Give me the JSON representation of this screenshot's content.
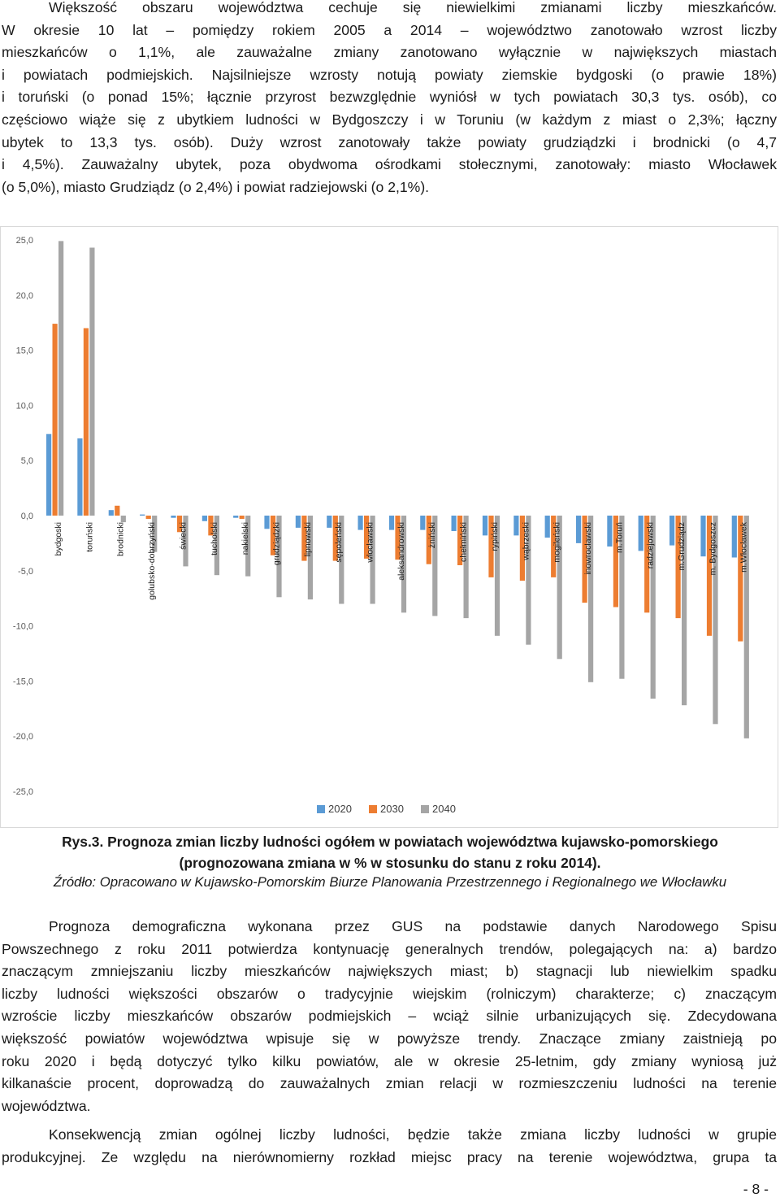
{
  "paragraph1": [
    "Większość obszaru województwa cechuje się niewielkimi zmianami liczby mieszkańców.",
    "W okresie 10 lat – pomiędzy rokiem 2005 a 2014 – województwo zanotowało wzrost liczby",
    "mieszkańców o 1,1%, ale zauważalne zmiany zanotowano wyłącznie w największych miastach",
    "i powiatach podmiejskich. Najsilniejsze wzrosty notują powiaty ziemskie bydgoski (o prawie 18%)",
    "i toruński (o ponad 15%; łącznie przyrost bezwzględnie wyniósł w tych powiatach 30,3 tys. osób), co",
    "częściowo wiąże się z ubytkiem ludności w Bydgoszczy i w Toruniu (w każdym z miast o 2,3%; łączny",
    "ubytek to 13,3 tys. osób). Duży wzrost zanotowały także powiaty grudziądzki i brodnicki (o 4,7",
    "i 4,5%). Zauważalny ubytek, poza obydwoma ośrodkami stołecznymi, zanotowały: miasto Włocławek",
    "(o 5,0%), miasto Grudziądz (o 2,4%) i powiat radziejowski (o 2,1%)."
  ],
  "chart_data": {
    "type": "bar",
    "categories": [
      "bydgoski",
      "toruński",
      "brodnicki",
      "golubsko-dobrzyński",
      "świecki",
      "tucholski",
      "nakielski",
      "grudziądzki",
      "lipnowski",
      "sępoleński",
      "włocławski",
      "aleksandrowski",
      "żniński",
      "chełmiński",
      "rypiński",
      "wąbrzeski",
      "mogileński",
      "inowrocławski",
      "m.Toruń",
      "radziejowski",
      "m.Grudziądz",
      "m. Bydgoszcz",
      "m.Włocławek"
    ],
    "series": [
      {
        "name": "2020",
        "color": "#5b9bd5",
        "values": [
          7.4,
          7.0,
          0.5,
          0.1,
          -0.2,
          -0.5,
          -0.2,
          -1.2,
          -1.1,
          -1.1,
          -1.3,
          -1.3,
          -1.3,
          -1.4,
          -1.8,
          -1.8,
          -2.0,
          -2.5,
          -2.8,
          -3.2,
          -2.7,
          -3.7,
          -3.8
        ]
      },
      {
        "name": "2030",
        "color": "#ed7d31",
        "values": [
          17.4,
          17.0,
          0.9,
          -0.3,
          -1.5,
          -1.8,
          -0.3,
          -3.6,
          -4.1,
          -4.1,
          -3.9,
          -4.0,
          -4.4,
          -4.5,
          -5.6,
          -5.9,
          -5.6,
          -7.9,
          -8.3,
          -8.8,
          -9.3,
          -10.9,
          -11.4
        ]
      },
      {
        "name": "2040",
        "color": "#a5a5a5",
        "values": [
          24.9,
          24.3,
          -0.6,
          -3.3,
          -4.6,
          -5.4,
          -5.5,
          -7.4,
          -7.6,
          -8.0,
          -8.0,
          -8.8,
          -9.1,
          -9.3,
          -10.9,
          -11.7,
          -13.0,
          -15.1,
          -14.8,
          -16.6,
          -17.2,
          -18.9,
          -20.2
        ]
      }
    ],
    "yticks": [
      "25,0",
      "20,0",
      "15,0",
      "10,0",
      "5,0",
      "0,0",
      "-5,0",
      "-10,0",
      "-15,0",
      "-20,0",
      "-25,0"
    ],
    "ylim": [
      -25,
      25
    ],
    "legend": [
      "2020",
      "2030",
      "2040"
    ],
    "legend_position": "bottom",
    "grid": false
  },
  "caption_line1": "Rys.3. Prognoza zmian liczby ludności ogółem w powiatach województwa kujawsko-pomorskiego",
  "caption_line2": "(prognozowana zmiana w % w stosunku do stanu z roku 2014).",
  "source": "Źródło: Opracowano w Kujawsko-Pomorskim Biurze Planowania Przestrzennego i Regionalnego we Włocławku",
  "paragraph2": [
    "Prognoza demograficzna wykonana przez GUS na podstawie danych Narodowego Spisu",
    "Powszechnego z roku 2011 potwierdza kontynuację generalnych trendów, polegających na: a) bardzo",
    "znaczącym zmniejszaniu liczby mieszkańców największych miast; b) stagnacji lub niewielkim spadku",
    "liczby ludności większości obszarów o tradycyjnie wiejskim (rolniczym) charakterze; c) znaczącym",
    "wzroście liczby mieszkańców obszarów podmiejskich – wciąż silnie urbanizujących się. Zdecydowana",
    "większość powiatów województwa wpisuje się w powyższe trendy. Znaczące zmiany zaistnieją po",
    "roku 2020 i będą dotyczyć tylko kilku powiatów, ale w okresie 25-letnim, gdy zmiany wyniosą już",
    "kilkanaście procent, doprowadzą do zauważalnych zmian relacji w rozmieszczeniu ludności na terenie",
    "województwa."
  ],
  "paragraph3": [
    "Konsekwencją zmian ogólnej liczby ludności, będzie także zmiana liczby ludności w grupie",
    "produkcyjnej. Ze względu na nierównomierny rozkład miejsc pracy na terenie województwa, grupa ta"
  ],
  "page_number": "- 8 -"
}
